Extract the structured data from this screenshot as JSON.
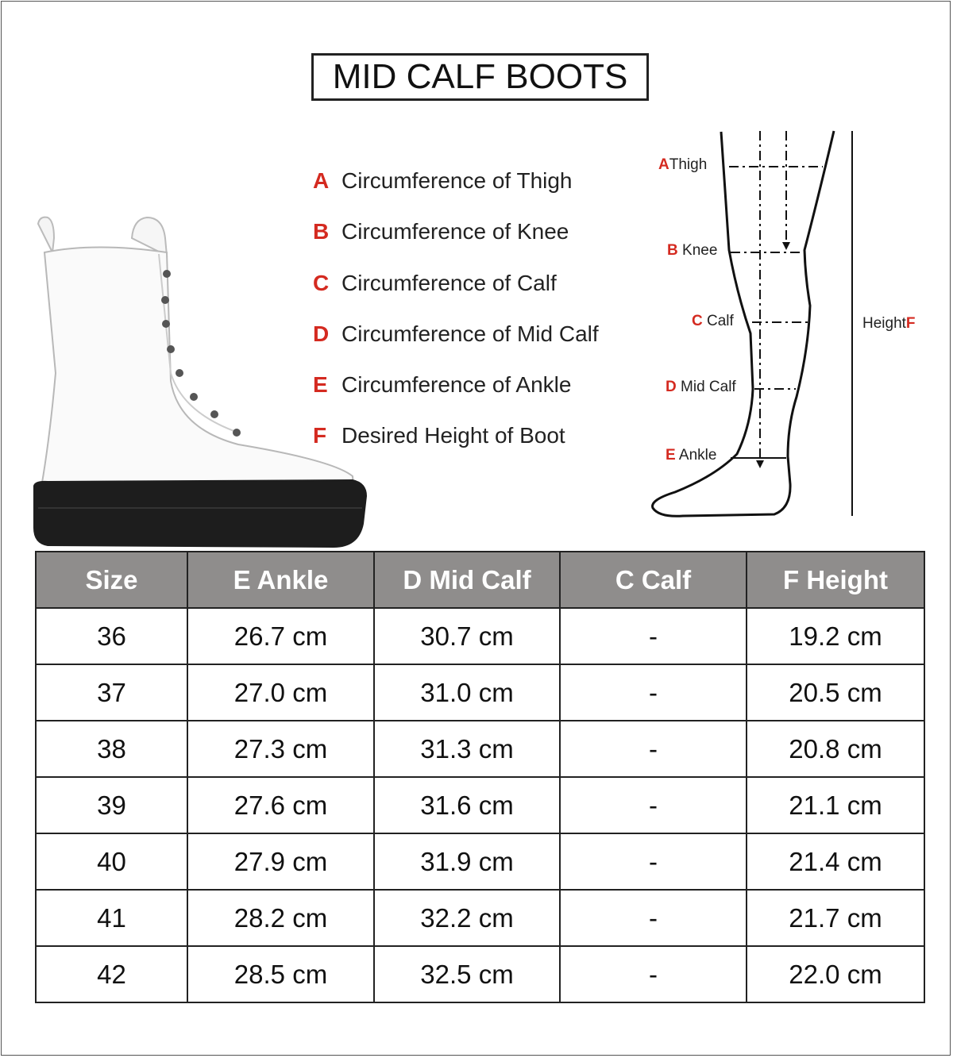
{
  "title": "MID CALF BOOTS",
  "legend": [
    {
      "letter": "A",
      "text": "Circumference of Thigh"
    },
    {
      "letter": "B",
      "text": "Circumference of Knee"
    },
    {
      "letter": "C",
      "text": "Circumference of Calf"
    },
    {
      "letter": "D",
      "text": "Circumference of Mid Calf"
    },
    {
      "letter": "E",
      "text": "Circumference of Ankle"
    },
    {
      "letter": "F",
      "text": "Desired Height of Boot"
    }
  ],
  "diagram": {
    "labels": [
      {
        "letter": "A",
        "text": "Thigh"
      },
      {
        "letter": "B",
        "text": "Knee"
      },
      {
        "letter": "C",
        "text": "Calf"
      },
      {
        "letter": "D",
        "text": "Mid Calf"
      },
      {
        "letter": "E",
        "text": "Ankle"
      }
    ],
    "height_label": {
      "text": "Height",
      "letter": "F"
    }
  },
  "colors": {
    "accent_red": "#d42a20",
    "header_gray": "#8f8d8c"
  },
  "table": {
    "headers": [
      "Size",
      "E Ankle",
      "D Mid Calf",
      "C Calf",
      "F Height"
    ],
    "rows": [
      [
        "36",
        "26.7 cm",
        "30.7 cm",
        "-",
        "19.2 cm"
      ],
      [
        "37",
        "27.0 cm",
        "31.0 cm",
        "-",
        "20.5 cm"
      ],
      [
        "38",
        "27.3 cm",
        "31.3 cm",
        "-",
        "20.8 cm"
      ],
      [
        "39",
        "27.6 cm",
        "31.6 cm",
        "-",
        "21.1 cm"
      ],
      [
        "40",
        "27.9 cm",
        "31.9 cm",
        "-",
        "21.4 cm"
      ],
      [
        "41",
        "28.2 cm",
        "32.2 cm",
        "-",
        "21.7 cm"
      ],
      [
        "42",
        "28.5 cm",
        "32.5 cm",
        "-",
        "22.0 cm"
      ]
    ]
  }
}
